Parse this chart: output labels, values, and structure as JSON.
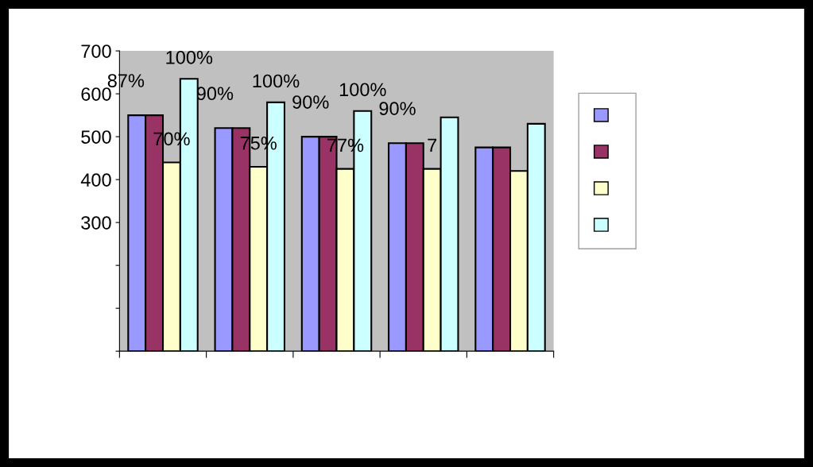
{
  "chart_data": {
    "type": "bar",
    "categories": [
      null,
      null,
      null,
      null,
      null
    ],
    "series": [
      {
        "color": "#9999ff",
        "values": [
          550,
          520,
          500,
          485,
          475
        ]
      },
      {
        "color": "#993366",
        "values": [
          550,
          520,
          500,
          485,
          475
        ]
      },
      {
        "color": "#ffffcc",
        "values": [
          440,
          430,
          425,
          425,
          420
        ]
      },
      {
        "color": "#ccffff",
        "values": [
          635,
          580,
          560,
          545,
          530
        ]
      }
    ],
    "annotations": [
      "87%",
      "90%",
      "90%",
      "90%",
      "70%",
      "75%",
      "77%",
      "7",
      "100%",
      "100%",
      "100%"
    ],
    "ylim": [
      0,
      700
    ],
    "yticks": [
      {
        "value": 0,
        "label": null
      },
      {
        "value": 100,
        "label": null
      },
      {
        "value": 200,
        "label": null
      },
      300,
      400,
      500,
      600,
      700
    ],
    "grid": false
  }
}
